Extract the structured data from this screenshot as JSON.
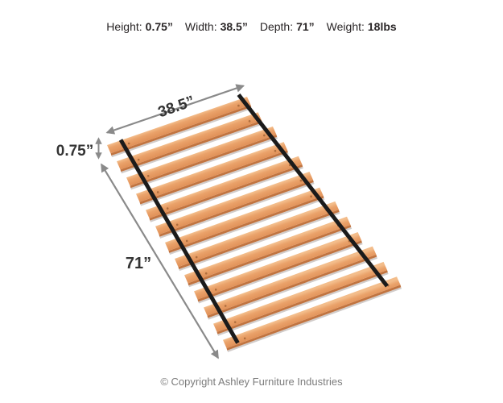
{
  "header": {
    "specs": [
      {
        "label": "Height:",
        "value": "0.75”"
      },
      {
        "label": "Width:",
        "value": "38.5”"
      },
      {
        "label": "Depth:",
        "value": "71”"
      },
      {
        "label": "Weight:",
        "value": "18lbs"
      }
    ]
  },
  "diagram": {
    "width_label": "38.5”",
    "height_label": "0.75”",
    "depth_label": "71”",
    "slat_count": 13,
    "strap_count": 2,
    "colors": {
      "slat_highlight": "#f3bd8b",
      "slat_top": "#eaa26a",
      "slat_shade": "#dd8b52",
      "slat_side": "#c17440",
      "slat_hole": "#a9693a",
      "shadow": "#b8b1ae",
      "strap": "#1b1b1b",
      "arrow": "#8a8a8a",
      "label_text": "#343434"
    }
  },
  "footer": {
    "copyright": "© Copyright Ashley Furniture Industries"
  }
}
